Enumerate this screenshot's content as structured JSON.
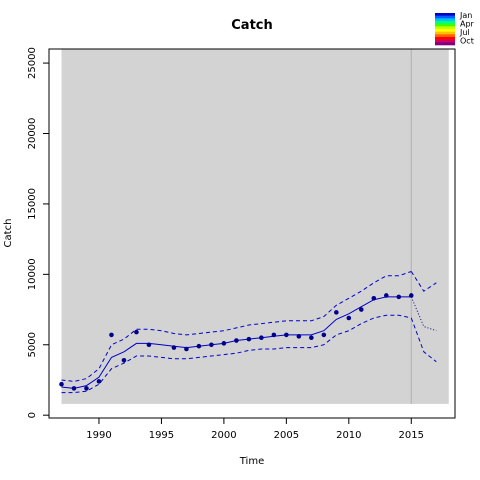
{
  "chart_data": {
    "type": "line",
    "title": "Catch",
    "xlabel": "Time",
    "ylabel": "Catch",
    "xlim": [
      1986,
      2018.5
    ],
    "ylim": [
      -200,
      26000
    ],
    "xticks": [
      1990,
      1995,
      2000,
      2005,
      2010,
      2015
    ],
    "yticks": [
      0,
      5000,
      10000,
      15000,
      20000,
      25000
    ],
    "shaded_region": {
      "x": [
        1987,
        2018
      ],
      "y": [
        800,
        26000
      ],
      "color": "#d3d3d3"
    },
    "reference_line_x": 2015,
    "observed": {
      "x": [
        1987,
        1988,
        1989,
        1990,
        1991,
        1992,
        1993,
        1994,
        1996,
        1997,
        1998,
        1999,
        2000,
        2001,
        2002,
        2003,
        2004,
        2005,
        2006,
        2007,
        2008,
        2009,
        2010,
        2011,
        2012,
        2013,
        2014,
        2015
      ],
      "y": [
        2200,
        1900,
        1900,
        2400,
        5700,
        3900,
        5900,
        5000,
        4800,
        4700,
        4900,
        5000,
        5100,
        5300,
        5400,
        5500,
        5700,
        5700,
        5600,
        5500,
        5700,
        7300,
        6900,
        7500,
        8300,
        8500,
        8400,
        8500
      ]
    },
    "fit": {
      "x": [
        1987,
        1988,
        1989,
        1990,
        1991,
        1992,
        1993,
        1994,
        1995,
        1996,
        1997,
        1998,
        1999,
        2000,
        2001,
        2002,
        2003,
        2004,
        2005,
        2006,
        2007,
        2008,
        2009,
        2010,
        2011,
        2012,
        2013,
        2014,
        2015
      ],
      "y": [
        2000,
        1900,
        2100,
        2700,
        4100,
        4500,
        5100,
        5100,
        5000,
        4900,
        4800,
        4900,
        5000,
        5100,
        5300,
        5400,
        5500,
        5600,
        5700,
        5700,
        5700,
        6000,
        6800,
        7200,
        7700,
        8200,
        8400,
        8400,
        8400
      ]
    },
    "fit_upper": {
      "x": [
        1987,
        1988,
        1989,
        1990,
        1991,
        1992,
        1993,
        1994,
        1995,
        1996,
        1997,
        1998,
        1999,
        2000,
        2001,
        2002,
        2003,
        2004,
        2005,
        2006,
        2007,
        2008,
        2009,
        2010,
        2011,
        2012,
        2013,
        2014,
        2015
      ],
      "y": [
        2500,
        2400,
        2600,
        3300,
        5000,
        5400,
        6100,
        6100,
        6000,
        5800,
        5700,
        5800,
        5900,
        6000,
        6200,
        6400,
        6500,
        6600,
        6700,
        6700,
        6700,
        7000,
        7800,
        8300,
        8800,
        9400,
        9900,
        9900,
        10200
      ]
    },
    "fit_lower": {
      "x": [
        1987,
        1988,
        1989,
        1990,
        1991,
        1992,
        1993,
        1994,
        1995,
        1996,
        1997,
        1998,
        1999,
        2000,
        2001,
        2002,
        2003,
        2004,
        2005,
        2006,
        2007,
        2008,
        2009,
        2010,
        2011,
        2012,
        2013,
        2014,
        2015
      ],
      "y": [
        1600,
        1600,
        1700,
        2200,
        3300,
        3700,
        4200,
        4200,
        4100,
        4000,
        4000,
        4100,
        4200,
        4300,
        4400,
        4600,
        4700,
        4700,
        4800,
        4800,
        4800,
        5000,
        5700,
        6000,
        6500,
        6900,
        7100,
        7100,
        6900
      ]
    },
    "forecast": {
      "x": [
        2015,
        2016,
        2017
      ],
      "y": [
        8400,
        6300,
        6000
      ]
    },
    "forecast_upper": {
      "x": [
        2015,
        2016,
        2017
      ],
      "y": [
        10200,
        8800,
        9400
      ]
    },
    "forecast_lower": {
      "x": [
        2015,
        2016,
        2017
      ],
      "y": [
        6900,
        4500,
        3800
      ]
    },
    "legend": {
      "placement": "top-right",
      "labels": [
        "Jan",
        "Apr",
        "Jul",
        "Oct"
      ],
      "colors": [
        "#0000cc",
        "#0060ff",
        "#00c0ff",
        "#00ff80",
        "#40ff00",
        "#c0ff00",
        "#ffff00",
        "#ffc000",
        "#ff6000",
        "#ff0000",
        "#d00060",
        "#800080"
      ]
    },
    "colors": {
      "series": "#0000cc",
      "observed": "#00008b",
      "ref_line": "#b0b0b0",
      "forecast": "#0000cc"
    }
  }
}
